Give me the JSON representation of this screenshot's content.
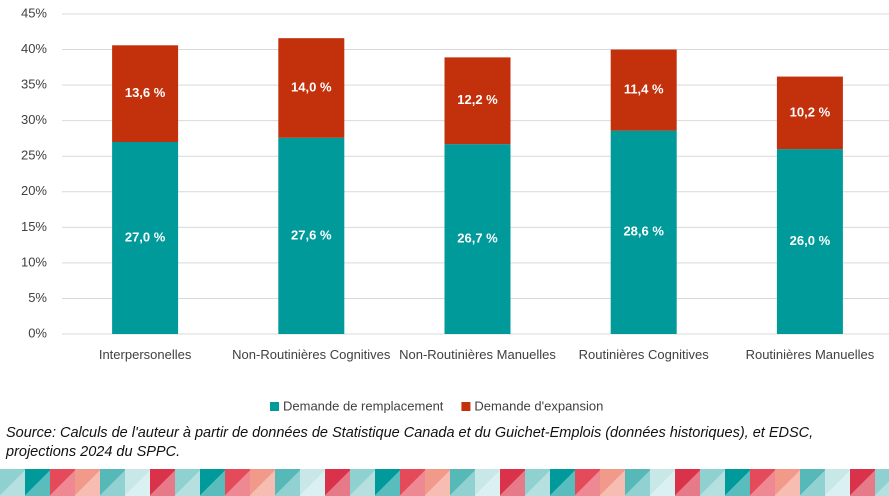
{
  "chart_data": {
    "type": "stacked-bar",
    "categories": [
      "Interpersonelles",
      "Non-Routinières Cognitives",
      "Non-Routinières Manuelles",
      "Routinières Cognitives",
      "Routinières Manuelles"
    ],
    "series": [
      {
        "name": "Demande de remplacement",
        "color": "#009a9a",
        "values": [
          27.0,
          27.6,
          26.7,
          28.6,
          26.0
        ],
        "value_labels": [
          "27,0 %",
          "27,6 %",
          "26,7 %",
          "28,6 %",
          "26,0 %"
        ]
      },
      {
        "name": "Demande d'expansion",
        "color": "#c2300c",
        "values": [
          13.6,
          14.0,
          12.2,
          11.4,
          10.2
        ],
        "value_labels": [
          "13,6 %",
          "14,0 %",
          "12,2 %",
          "11,4 %",
          "10,2 %"
        ]
      }
    ],
    "ylim": [
      0,
      45
    ],
    "yticks": [
      {
        "value": 0,
        "label": "0%"
      },
      {
        "value": 5,
        "label": "5%"
      },
      {
        "value": 10,
        "label": "10%"
      },
      {
        "value": 15,
        "label": "15%"
      },
      {
        "value": 20,
        "label": "20%"
      },
      {
        "value": 25,
        "label": "25%"
      },
      {
        "value": 30,
        "label": "30%"
      },
      {
        "value": 35,
        "label": "35%"
      },
      {
        "value": 40,
        "label": "40%"
      },
      {
        "value": 45,
        "label": "45%"
      }
    ],
    "grid": true,
    "legend": "bottom",
    "source": "Source: Calculs de l'auteur à partir de données de Statistique Canada et du Guichet-Emplois (données historiques), et EDSC, projections 2024 du SPPC."
  }
}
